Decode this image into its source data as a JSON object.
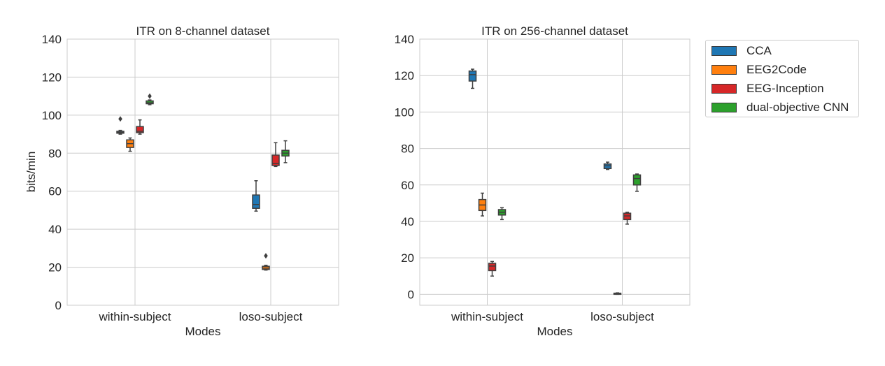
{
  "chart_data": [
    {
      "type": "box",
      "title": "ITR on 8-channel dataset",
      "xlabel": "Modes",
      "ylabel": "bits/min",
      "categories": [
        "within-subject",
        "loso-subject"
      ],
      "ylim": [
        0,
        140
      ],
      "yticks": [
        0,
        20,
        40,
        60,
        80,
        100,
        120,
        140
      ],
      "grid": true,
      "series": [
        {
          "name": "CCA",
          "color": "#1f77b4",
          "boxes": [
            {
              "min": 90,
              "q1": 90.5,
              "median": 91,
              "q3": 91.5,
              "max": 92,
              "outliers": [
                98
              ]
            },
            {
              "min": 49.5,
              "q1": 51,
              "median": 53,
              "q3": 58,
              "max": 65.5,
              "outliers": []
            }
          ]
        },
        {
          "name": "EEG2Code",
          "color": "#ff7f0e",
          "boxes": [
            {
              "min": 81,
              "q1": 83,
              "median": 85,
              "q3": 87,
              "max": 88,
              "outliers": []
            },
            {
              "min": 18.5,
              "q1": 18.8,
              "median": 19.5,
              "q3": 20.5,
              "max": 21,
              "outliers": [
                26
              ]
            }
          ]
        },
        {
          "name": "EEG-Inception",
          "color": "#d62728",
          "boxes": [
            {
              "min": 90,
              "q1": 90.8,
              "median": 91.5,
              "q3": 94,
              "max": 97.5,
              "outliers": []
            },
            {
              "min": 73,
              "q1": 73.5,
              "median": 74.5,
              "q3": 79,
              "max": 85.5,
              "outliers": []
            }
          ]
        },
        {
          "name": "dual-objective CNN",
          "color": "#2ca02c",
          "boxes": [
            {
              "min": 105.5,
              "q1": 106,
              "median": 106.5,
              "q3": 107.5,
              "max": 108,
              "outliers": [
                110
              ]
            },
            {
              "min": 75,
              "q1": 78.5,
              "median": 80,
              "q3": 81.5,
              "max": 86.5,
              "outliers": []
            }
          ]
        }
      ]
    },
    {
      "type": "box",
      "title": "ITR on 256-channel dataset",
      "xlabel": "Modes",
      "ylabel": "",
      "categories": [
        "within-subject",
        "loso-subject"
      ],
      "ylim": [
        -6,
        140
      ],
      "yticks": [
        0,
        20,
        40,
        60,
        80,
        100,
        120,
        140
      ],
      "grid": true,
      "legend": "outside-right",
      "series": [
        {
          "name": "CCA",
          "color": "#1f77b4",
          "boxes": [
            {
              "min": 113,
              "q1": 117,
              "median": 120.5,
              "q3": 122.5,
              "max": 123.5,
              "outliers": []
            },
            {
              "min": 68.5,
              "q1": 69,
              "median": 70.5,
              "q3": 71.5,
              "max": 72.5,
              "outliers": []
            }
          ]
        },
        {
          "name": "EEG2Code",
          "color": "#ff7f0e",
          "boxes": [
            {
              "min": 43,
              "q1": 46,
              "median": 49,
              "q3": 52,
              "max": 55.5,
              "outliers": []
            },
            {
              "min": 0,
              "q1": 0,
              "median": 0.3,
              "q3": 0.6,
              "max": 0.8,
              "outliers": []
            }
          ]
        },
        {
          "name": "EEG-Inception",
          "color": "#d62728",
          "boxes": [
            {
              "min": 10,
              "q1": 13,
              "median": 15.5,
              "q3": 17,
              "max": 18,
              "outliers": []
            },
            {
              "min": 38.5,
              "q1": 41,
              "median": 43,
              "q3": 44.5,
              "max": 45,
              "outliers": []
            }
          ]
        },
        {
          "name": "dual-objective CNN",
          "color": "#2ca02c",
          "boxes": [
            {
              "min": 41,
              "q1": 43.5,
              "median": 45,
              "q3": 46.5,
              "max": 47.5,
              "outliers": []
            },
            {
              "min": 56.5,
              "q1": 60,
              "median": 63.5,
              "q3": 65.5,
              "max": 66,
              "outliers": []
            }
          ]
        }
      ]
    }
  ]
}
